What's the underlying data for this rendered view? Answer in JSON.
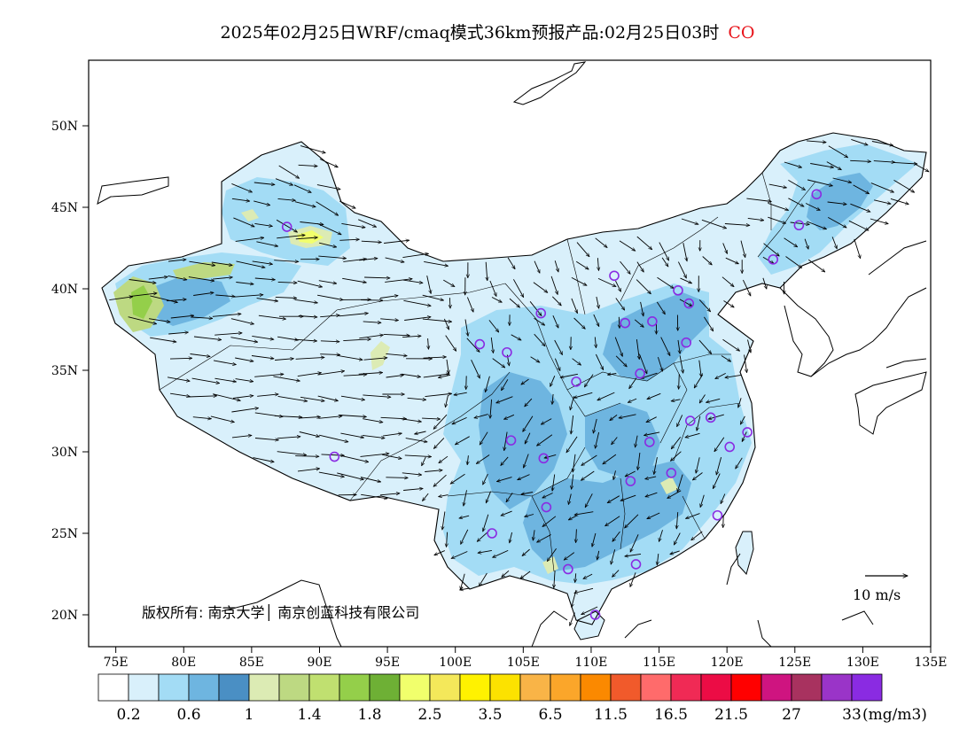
{
  "header": {
    "title": "2025年02月25日WRF/cmaq模式36km预报产品:02月25日03时",
    "species": "CO"
  },
  "map": {
    "lon_range": [
      73,
      135
    ],
    "lat_range": [
      18,
      54
    ],
    "lon_ticks": [
      {
        "value": 75,
        "label": "75E"
      },
      {
        "value": 80,
        "label": "80E"
      },
      {
        "value": 85,
        "label": "85E"
      },
      {
        "value": 90,
        "label": "90E"
      },
      {
        "value": 95,
        "label": "95E"
      },
      {
        "value": 100,
        "label": "100E"
      },
      {
        "value": 105,
        "label": "105E"
      },
      {
        "value": 110,
        "label": "110E"
      },
      {
        "value": 115,
        "label": "115E"
      },
      {
        "value": 120,
        "label": "120E"
      },
      {
        "value": 125,
        "label": "125E"
      },
      {
        "value": 130,
        "label": "130E"
      },
      {
        "value": 135,
        "label": "135E"
      }
    ],
    "lat_ticks": [
      {
        "value": 20,
        "label": "20N"
      },
      {
        "value": 25,
        "label": "25N"
      },
      {
        "value": 30,
        "label": "30N"
      },
      {
        "value": 35,
        "label": "35N"
      },
      {
        "value": 40,
        "label": "40N"
      },
      {
        "value": 45,
        "label": "45N"
      },
      {
        "value": 50,
        "label": "50N"
      }
    ],
    "copyright": "版权所有: 南京大学│ 南京创蓝科技有限公司",
    "wind_scale_label": "10 m/s",
    "city_marker_color": "#8a2be2",
    "city_markers": [
      {
        "lon": 126.6,
        "lat": 45.8
      },
      {
        "lon": 125.3,
        "lat": 43.9
      },
      {
        "lon": 123.4,
        "lat": 41.8
      },
      {
        "lon": 87.6,
        "lat": 43.8
      },
      {
        "lon": 111.7,
        "lat": 40.8
      },
      {
        "lon": 116.4,
        "lat": 39.9
      },
      {
        "lon": 117.2,
        "lat": 39.1
      },
      {
        "lon": 106.3,
        "lat": 38.5
      },
      {
        "lon": 112.5,
        "lat": 37.9
      },
      {
        "lon": 114.5,
        "lat": 38.0
      },
      {
        "lon": 117.0,
        "lat": 36.7
      },
      {
        "lon": 101.8,
        "lat": 36.6
      },
      {
        "lon": 103.8,
        "lat": 36.1
      },
      {
        "lon": 113.6,
        "lat": 34.8
      },
      {
        "lon": 108.9,
        "lat": 34.3
      },
      {
        "lon": 117.3,
        "lat": 31.9
      },
      {
        "lon": 118.8,
        "lat": 32.1
      },
      {
        "lon": 121.5,
        "lat": 31.2
      },
      {
        "lon": 120.2,
        "lat": 30.3
      },
      {
        "lon": 114.3,
        "lat": 30.6
      },
      {
        "lon": 104.1,
        "lat": 30.7
      },
      {
        "lon": 106.5,
        "lat": 29.6
      },
      {
        "lon": 91.1,
        "lat": 29.7
      },
      {
        "lon": 112.9,
        "lat": 28.2
      },
      {
        "lon": 115.9,
        "lat": 28.7
      },
      {
        "lon": 106.7,
        "lat": 26.6
      },
      {
        "lon": 119.3,
        "lat": 26.1
      },
      {
        "lon": 102.7,
        "lat": 25.0
      },
      {
        "lon": 108.3,
        "lat": 22.8
      },
      {
        "lon": 113.3,
        "lat": 23.1
      },
      {
        "lon": 110.3,
        "lat": 20.0
      }
    ]
  },
  "legend": {
    "unit": "(mg/m3)",
    "colors": [
      "#ffffff",
      "#d9f0fb",
      "#a3dcf5",
      "#6eb5e0",
      "#4a8fc4",
      "#dcebb4",
      "#bdd982",
      "#c0e070",
      "#94cf4a",
      "#6eb035",
      "#f1ff6c",
      "#f4e85a",
      "#fff200",
      "#fce200",
      "#f9b447",
      "#fba62a",
      "#fb8900",
      "#f15a2b",
      "#ff6b6b",
      "#f02a55",
      "#ec0c45",
      "#ff0000",
      "#cf1480",
      "#a8325f",
      "#9a34c8",
      "#8a2be2"
    ],
    "labels": [
      {
        "index": 1,
        "text": "0.2"
      },
      {
        "index": 3,
        "text": "0.6"
      },
      {
        "index": 5,
        "text": "1"
      },
      {
        "index": 7,
        "text": "1.4"
      },
      {
        "index": 9,
        "text": "1.8"
      },
      {
        "index": 11,
        "text": "2.5"
      },
      {
        "index": 13,
        "text": "3.5"
      },
      {
        "index": 15,
        "text": "6.5"
      },
      {
        "index": 17,
        "text": "11.5"
      },
      {
        "index": 19,
        "text": "16.5"
      },
      {
        "index": 21,
        "text": "21.5"
      },
      {
        "index": 23,
        "text": "27"
      },
      {
        "index": 25,
        "text": "33"
      }
    ]
  }
}
